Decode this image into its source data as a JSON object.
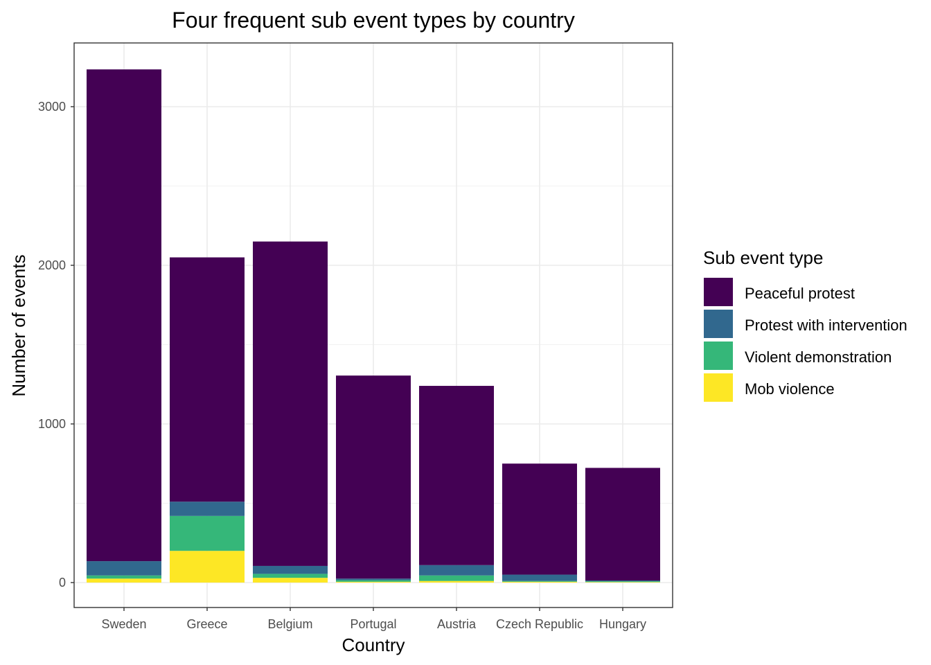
{
  "chart_data": {
    "type": "bar",
    "stacked": true,
    "title": "Four frequent sub event types by country",
    "xlabel": "Country",
    "ylabel": "Number of events",
    "ylim": [
      -150,
      3400
    ],
    "yticks": [
      0,
      1000,
      2000,
      3000
    ],
    "grid": true,
    "categories": [
      "Sweden",
      "Greece",
      "Belgium",
      "Portugal",
      "Austria",
      "Czech Republic",
      "Hungary"
    ],
    "legend": {
      "title": "Sub event type",
      "placement": "right"
    },
    "series": [
      {
        "name": "Mob violence",
        "color": "#FDE725",
        "values": [
          25,
          200,
          30,
          5,
          10,
          5,
          3
        ]
      },
      {
        "name": "Violent demonstration",
        "color": "#35B779",
        "values": [
          20,
          220,
          25,
          10,
          35,
          5,
          5
        ]
      },
      {
        "name": "Protest with intervention",
        "color": "#31688E",
        "values": [
          90,
          90,
          50,
          10,
          65,
          40,
          5
        ]
      },
      {
        "name": "Peaceful protest",
        "color": "#440154",
        "values": [
          3100,
          1540,
          2045,
          1280,
          1130,
          700,
          710
        ]
      }
    ],
    "legend_order": [
      "Peaceful protest",
      "Protest with intervention",
      "Violent demonstration",
      "Mob violence"
    ]
  }
}
